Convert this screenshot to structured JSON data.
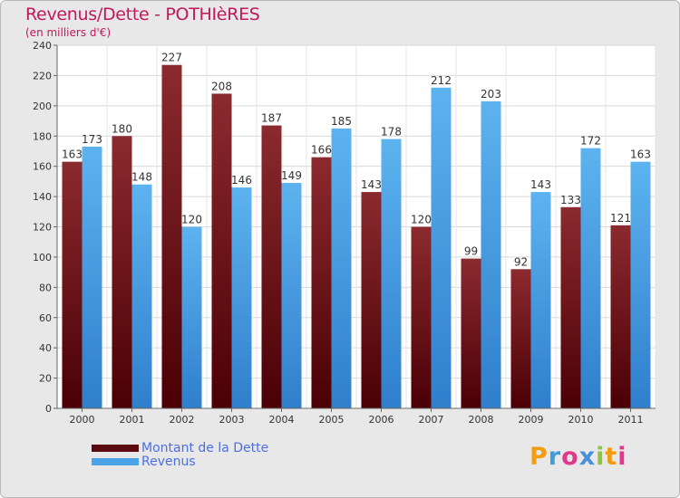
{
  "title": "Revenus/Dette - POTHIèRES",
  "subtitle": "(en milliers d'€)",
  "chart_data": {
    "type": "bar",
    "categories": [
      "2000",
      "2001",
      "2002",
      "2003",
      "2004",
      "2005",
      "2006",
      "2007",
      "2008",
      "2009",
      "2010",
      "2011"
    ],
    "series": [
      {
        "name": "Montant de la Dette",
        "color": "#7a1a1f",
        "values": [
          163,
          180,
          227,
          208,
          187,
          166,
          143,
          120,
          99,
          92,
          133,
          121
        ]
      },
      {
        "name": "Revenus",
        "color": "#4aa3e6",
        "values": [
          173,
          148,
          120,
          146,
          149,
          185,
          178,
          212,
          203,
          143,
          172,
          163
        ]
      }
    ],
    "ylim": [
      0,
      240
    ],
    "yticks": [
      0,
      20,
      40,
      60,
      80,
      100,
      120,
      140,
      160,
      180,
      200,
      220,
      240
    ],
    "grid": true,
    "legend": "bottom-left"
  },
  "legend": [
    {
      "label": "Montant de la Dette",
      "color": "#5a0a0e"
    },
    {
      "label": "Revenus",
      "color": "#4aa3e6"
    }
  ],
  "logo": {
    "letters": [
      "P",
      "r",
      "o",
      "x",
      "i",
      "t",
      "i"
    ],
    "colors": [
      "#f39c12",
      "#3b9edb",
      "#e2388b",
      "#4a90d9",
      "#8cc63f",
      "#f39c12",
      "#e2388b"
    ]
  }
}
